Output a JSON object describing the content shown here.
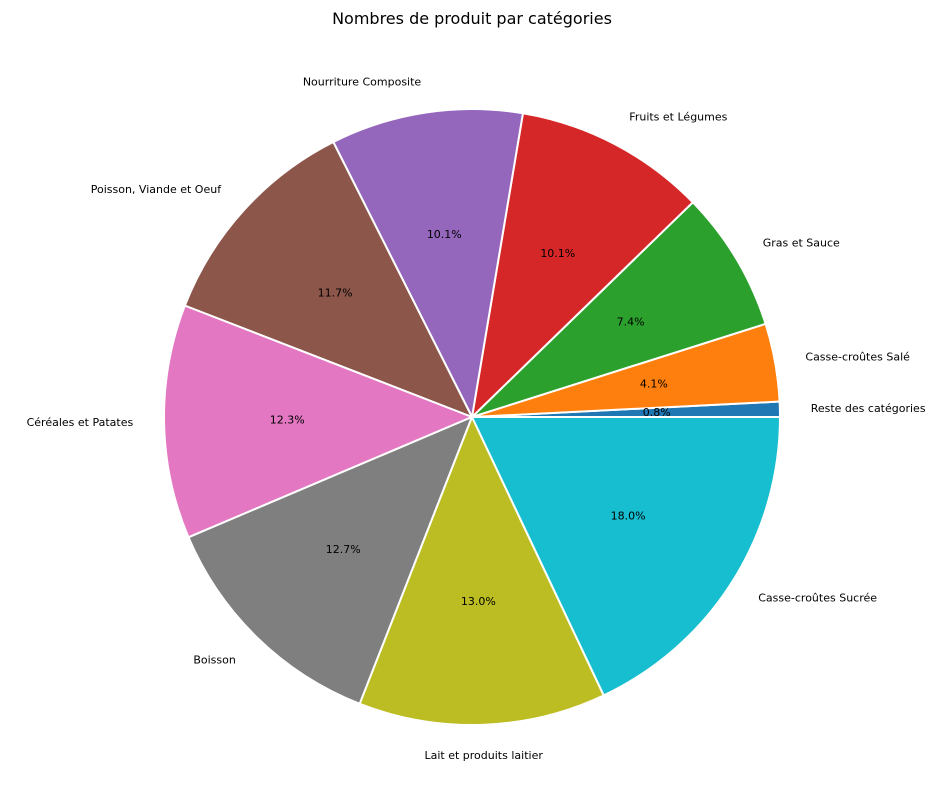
{
  "chart_data": {
    "type": "pie",
    "title": "Nombres de produit par catégories",
    "start_angle_deg": 0,
    "direction": "counterclockwise",
    "slices": [
      {
        "label": "Reste des catégories",
        "value": 0.8,
        "pct_label": "0.8%",
        "color": "#1f77b4"
      },
      {
        "label": "Casse-croûtes Salé",
        "value": 4.1,
        "pct_label": "4.1%",
        "color": "#ff7f0e"
      },
      {
        "label": "Gras et Sauce",
        "value": 7.4,
        "pct_label": "7.4%",
        "color": "#2ca02c"
      },
      {
        "label": "Fruits et Légumes",
        "value": 10.1,
        "pct_label": "10.1%",
        "color": "#d62728"
      },
      {
        "label": "Nourriture Composite",
        "value": 10.1,
        "pct_label": "10.1%",
        "color": "#9467bd"
      },
      {
        "label": "Poisson, Viande et Oeuf",
        "value": 11.7,
        "pct_label": "11.7%",
        "color": "#8c564b"
      },
      {
        "label": "Céréales et Patates",
        "value": 12.3,
        "pct_label": "12.3%",
        "color": "#e377c2"
      },
      {
        "label": "Boisson",
        "value": 12.7,
        "pct_label": "12.7%",
        "color": "#7f7f7f"
      },
      {
        "label": "Lait et produits laitier",
        "value": 13.0,
        "pct_label": "13.0%",
        "color": "#bcbd22"
      },
      {
        "label": "Casse-croûtes Sucrée",
        "value": 18.0,
        "pct_label": "18.0%",
        "color": "#17becf"
      }
    ]
  }
}
